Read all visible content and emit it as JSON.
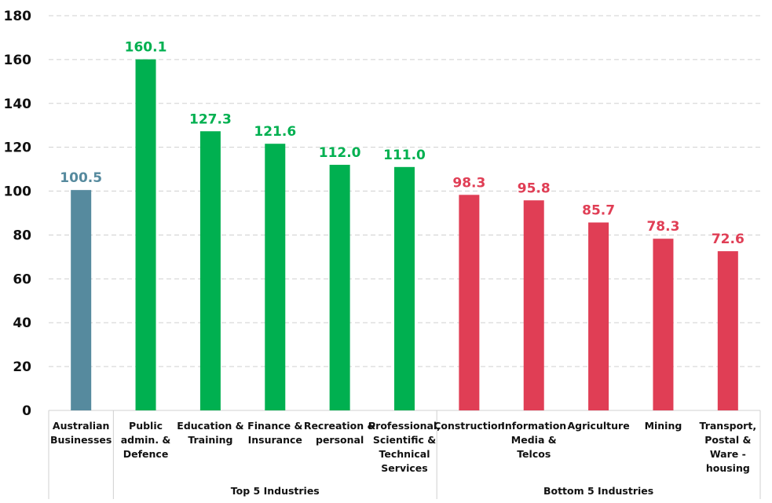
{
  "chart_data": {
    "type": "bar",
    "title": "",
    "xlabel": "",
    "ylabel": "",
    "ylim": [
      0,
      180
    ],
    "yticks": [
      "0",
      "20",
      "40",
      "60",
      "80",
      "100",
      "120",
      "140",
      "160",
      "180"
    ],
    "grid": true,
    "legend": "none",
    "categories": [
      [
        "Australian",
        "Businesses"
      ],
      [
        "Public",
        "admin. &",
        "Defence"
      ],
      [
        "Education &",
        "Training"
      ],
      [
        "Finance &",
        "Insurance"
      ],
      [
        "Recreation &",
        "personal"
      ],
      [
        "Professional,",
        "Scientific &",
        "Technical",
        "Services"
      ],
      [
        "Construction"
      ],
      [
        "Information",
        "Media &",
        "Telcos"
      ],
      [
        "Agriculture"
      ],
      [
        "Mining"
      ],
      [
        "Transport,",
        "Postal &",
        "Ware -",
        "housing"
      ]
    ],
    "values": [
      100.5,
      160.1,
      127.3,
      121.6,
      112.0,
      111.0,
      98.3,
      95.8,
      85.7,
      78.3,
      72.6
    ],
    "value_labels": [
      "100.5",
      "160.1",
      "127.3",
      "121.6",
      "112.0",
      "111.0",
      "98.3",
      "95.8",
      "85.7",
      "78.3",
      "72.6"
    ],
    "groups": [
      {
        "label": "",
        "start": 0,
        "end": 0,
        "color": "#568A9E"
      },
      {
        "label": "Top 5 Industries",
        "start": 1,
        "end": 5,
        "color": "#00B050"
      },
      {
        "label": "Bottom 5 Industries",
        "start": 6,
        "end": 10,
        "color": "#E03E55"
      }
    ]
  }
}
